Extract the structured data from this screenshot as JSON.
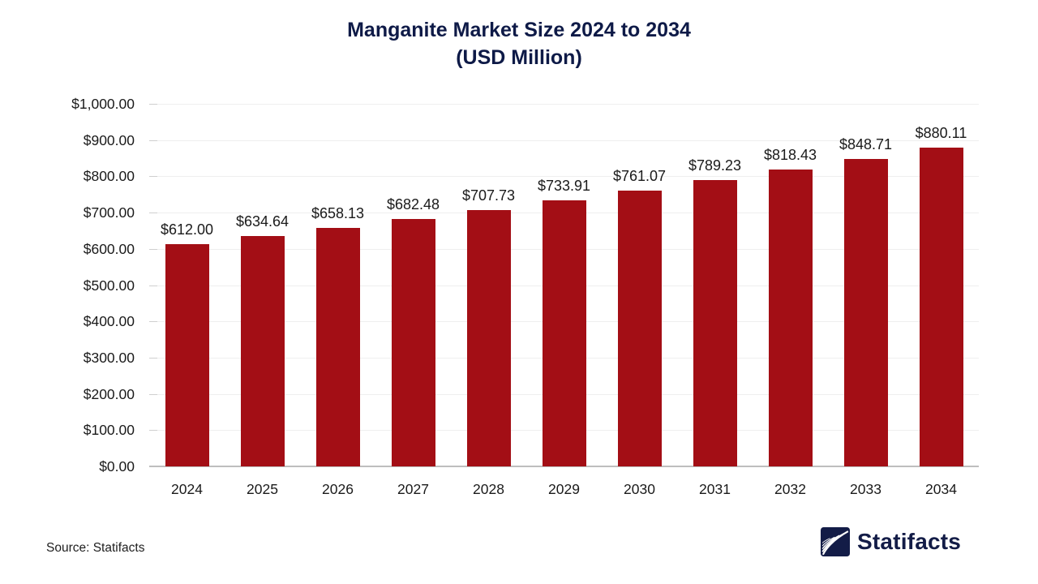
{
  "chart_data": {
    "type": "bar",
    "title_line1": "Manganite Market Size 2024 to 2034",
    "title_line2": "(USD Million)",
    "categories": [
      "2024",
      "2025",
      "2026",
      "2027",
      "2028",
      "2029",
      "2030",
      "2031",
      "2032",
      "2033",
      "2034"
    ],
    "values": [
      612.0,
      634.64,
      658.13,
      682.48,
      707.73,
      733.91,
      761.07,
      789.23,
      818.43,
      848.71,
      880.11
    ],
    "value_labels": [
      "$612.00",
      "$634.64",
      "$658.13",
      "$682.48",
      "$707.73",
      "$733.91",
      "$761.07",
      "$789.23",
      "$818.43",
      "$848.71",
      "$880.11"
    ],
    "y_ticks": [
      {
        "value": 0,
        "label": "$0.00"
      },
      {
        "value": 100,
        "label": "$100.00"
      },
      {
        "value": 200,
        "label": "$200.00"
      },
      {
        "value": 300,
        "label": "$300.00"
      },
      {
        "value": 400,
        "label": "$400.00"
      },
      {
        "value": 500,
        "label": "$500.00"
      },
      {
        "value": 600,
        "label": "$600.00"
      },
      {
        "value": 700,
        "label": "$700.00"
      },
      {
        "value": 800,
        "label": "$800.00"
      },
      {
        "value": 900,
        "label": "$900.00"
      },
      {
        "value": 1000,
        "label": "$1,000.00"
      }
    ],
    "ylim": [
      0,
      1000
    ],
    "grid": true,
    "legend": "none",
    "colors": {
      "bar": "#A30E15",
      "title": "#0E1A47",
      "gridline": "#EFEFEF",
      "tick": "#CFCFCF",
      "axis_line": "#BEBEBE",
      "text": "#1A1A1A"
    }
  },
  "footer": {
    "source": "Source: Statifacts",
    "brand": "Statifacts",
    "brand_color": "#131C47"
  }
}
